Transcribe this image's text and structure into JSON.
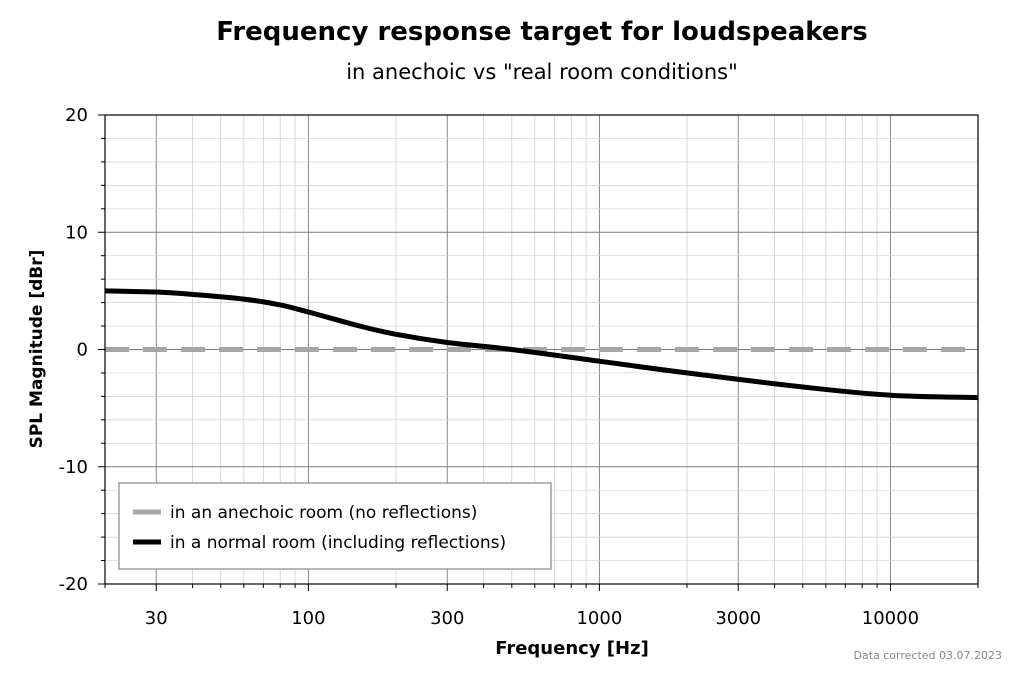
{
  "chart_data": {
    "type": "line",
    "title": "Frequency response target for loudspeakers",
    "subtitle": "in anechoic vs \"real room conditions\"",
    "xlabel": "Frequency [Hz]",
    "ylabel": "SPL Magnitude [dBr]",
    "x_scale": "log",
    "xlim": [
      20,
      20000
    ],
    "ylim": [
      -20,
      20
    ],
    "x_ticks": [
      30,
      100,
      300,
      1000,
      3000,
      10000
    ],
    "x_tick_labels": [
      "30",
      "100",
      "300",
      "1000",
      "3000",
      "10000"
    ],
    "y_ticks": [
      -20,
      -10,
      0,
      10,
      20
    ],
    "y_tick_labels": [
      "-20",
      "-10",
      "0",
      "10",
      "20"
    ],
    "grid": true,
    "legend_position": "bottom-left",
    "series": [
      {
        "name": "in an anechoic room (no reflections)",
        "color": "#a6a6a6",
        "style": "dashed",
        "x": [
          20,
          20000
        ],
        "y": [
          0,
          0
        ]
      },
      {
        "name": "in a normal room (including reflections)",
        "color": "#000000",
        "style": "solid",
        "x": [
          20,
          30,
          40,
          60,
          80,
          100,
          150,
          200,
          300,
          500,
          1000,
          2000,
          5000,
          10000,
          20000
        ],
        "y": [
          5.0,
          4.9,
          4.7,
          4.3,
          3.8,
          3.2,
          2.0,
          1.3,
          0.6,
          0.0,
          -1.0,
          -2.0,
          -3.2,
          -3.9,
          -4.1
        ]
      }
    ]
  },
  "footnote": "Data corrected 03.07.2023"
}
